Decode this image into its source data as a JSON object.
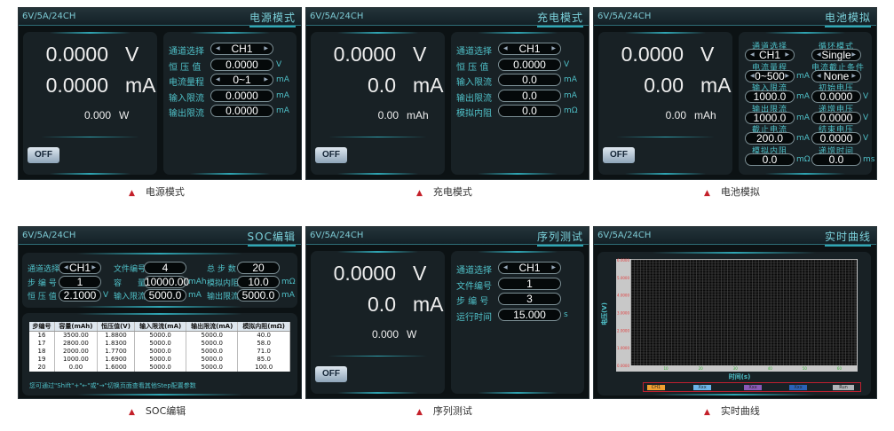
{
  "colors": {
    "accent": "#4fc0c8",
    "caption_marker": "#c4202a",
    "screen_bg": "#0c1214"
  },
  "panels": [
    {
      "type": "main",
      "model": "6V/5A/24CH",
      "mode": "电源模式",
      "caption": "电源模式",
      "readings": [
        {
          "value": "0.0000",
          "unit": "V"
        },
        {
          "value": "0.0000",
          "unit": "mA"
        },
        {
          "value": "0.000",
          "unit": "W"
        }
      ],
      "off": "OFF",
      "fields": [
        {
          "label": "通道选择",
          "value": "CH1",
          "arrows": true,
          "unit": ""
        },
        {
          "label": "恒 压 值",
          "value": "0.0000",
          "unit": "V"
        },
        {
          "label": "电流量程",
          "value": "0~1",
          "arrows": true,
          "unit": "mA"
        },
        {
          "label": "输入限流",
          "value": "0.0000",
          "unit": "mA"
        },
        {
          "label": "输出限流",
          "value": "0.0000",
          "unit": "mA"
        }
      ]
    },
    {
      "type": "main",
      "model": "6V/5A/24CH",
      "mode": "充电模式",
      "caption": "充电模式",
      "readings": [
        {
          "value": "0.0000",
          "unit": "V"
        },
        {
          "value": "0.0",
          "unit": "mA"
        },
        {
          "value": "0.00",
          "unit": "mAh"
        }
      ],
      "off": "OFF",
      "fields": [
        {
          "label": "通道选择",
          "value": "CH1",
          "arrows": true,
          "unit": ""
        },
        {
          "label": "恒 压 值",
          "value": "0.0000",
          "unit": "V"
        },
        {
          "label": "输入限流",
          "value": "0.0",
          "unit": "mA"
        },
        {
          "label": "输出限流",
          "value": "0.0",
          "unit": "mA"
        },
        {
          "label": "模拟内阻",
          "value": "0.0",
          "unit": "mΩ"
        }
      ]
    },
    {
      "type": "battery",
      "model": "6V/5A/24CH",
      "mode": "电池模拟",
      "caption": "电池模拟",
      "readings": [
        {
          "value": "0.0000",
          "unit": "V"
        },
        {
          "value": "0.00",
          "unit": "mA"
        },
        {
          "value": "0.00",
          "unit": "mAh"
        }
      ],
      "off": "OFF",
      "fields": [
        {
          "label": "通道选择",
          "value": "CH1",
          "arrows": true,
          "unit": ""
        },
        {
          "label": "循环模式",
          "value": "Single",
          "arrows": true,
          "unit": ""
        },
        {
          "label": "电流量程",
          "value": "0~500",
          "arrows": true,
          "unit": "mA"
        },
        {
          "label": "电流截止条件",
          "value": "None",
          "arrows": true,
          "unit": ""
        },
        {
          "label": "输入限流",
          "value": "1000.0",
          "unit": "mA"
        },
        {
          "label": "初始电压",
          "value": "0.0000",
          "unit": "V"
        },
        {
          "label": "输出限流",
          "value": "1000.0",
          "unit": "mA"
        },
        {
          "label": "递增电压",
          "value": "0.0000",
          "unit": "V"
        },
        {
          "label": "截止电流",
          "value": "200.0",
          "unit": "mA"
        },
        {
          "label": "结束电压",
          "value": "0.0000",
          "unit": "V"
        },
        {
          "label": "模拟内阻",
          "value": "0.0",
          "unit": "mΩ"
        },
        {
          "label": "递增时间",
          "value": "0.0",
          "unit": "ms"
        }
      ]
    },
    {
      "type": "soc",
      "model": "6V/5A/24CH",
      "mode": "SOC编辑",
      "caption": "SOC编辑",
      "fields": [
        {
          "label": "通道选择",
          "value": "CH1",
          "arrows": true,
          "unit": ""
        },
        {
          "label": "文件编号",
          "value": "4",
          "unit": ""
        },
        {
          "label": "总 步 数",
          "value": "20",
          "unit": ""
        },
        {
          "label": "步 编 号",
          "value": "1",
          "unit": ""
        },
        {
          "label": "容　　量",
          "value": "10000.00",
          "unit": "mAh"
        },
        {
          "label": "模拟内阻",
          "value": "10.0",
          "unit": "mΩ"
        },
        {
          "label": "恒 压 值",
          "value": "2.1000",
          "unit": "V"
        },
        {
          "label": "输入限流",
          "value": "5000.0",
          "unit": "mA"
        },
        {
          "label": "输出限流",
          "value": "5000.0",
          "unit": "mA"
        }
      ],
      "table": {
        "headers": [
          "步编号",
          "容量(mAh)",
          "恒压值(V)",
          "输入限流(mA)",
          "输出限流(mA)",
          "模拟内阻(mΩ)"
        ],
        "rows": [
          [
            "16",
            "3500.00",
            "1.8800",
            "5000.0",
            "5000.0",
            "40.0"
          ],
          [
            "17",
            "2800.00",
            "1.8300",
            "5000.0",
            "5000.0",
            "58.0"
          ],
          [
            "18",
            "2000.00",
            "1.7700",
            "5000.0",
            "5000.0",
            "71.0"
          ],
          [
            "19",
            "1000.00",
            "1.6900",
            "5000.0",
            "5000.0",
            "85.0"
          ],
          [
            "20",
            "0.00",
            "1.6000",
            "5000.0",
            "5000.0",
            "100.0"
          ]
        ]
      },
      "hint": "您可通过\"Shift\"+\"←\"或\"→\"切换页面查看其他Step配置参数"
    },
    {
      "type": "main",
      "model": "6V/5A/24CH",
      "mode": "序列测试",
      "caption": "序列测试",
      "readings": [
        {
          "value": "0.0000",
          "unit": "V"
        },
        {
          "value": "0.0",
          "unit": "mA"
        },
        {
          "value": "0.000",
          "unit": "W"
        }
      ],
      "off": "OFF",
      "fields": [
        {
          "label": "通道选择",
          "value": "CH1",
          "arrows": true,
          "unit": ""
        },
        {
          "label": "文件编号",
          "value": "1",
          "unit": ""
        },
        {
          "label": "步 编 号",
          "value": "3",
          "unit": ""
        },
        {
          "label": "运行时间",
          "value": "15.000",
          "unit": "s"
        }
      ]
    },
    {
      "type": "chart",
      "model": "6V/5A/24CH",
      "mode": "实时曲线",
      "caption": "实时曲线",
      "chart": {
        "ylabel": "电压(V)",
        "xlabel": "时间(s)",
        "yticks": [
          "0.0000",
          "1.0000",
          "2.0000",
          "3.0000",
          "4.0000",
          "5.0000",
          "6.0000"
        ],
        "xticks": [
          "10",
          "20",
          "30",
          "40",
          "50",
          "60"
        ],
        "ylim": [
          0,
          6
        ],
        "xlim": [
          0,
          65
        ],
        "grid": true
      },
      "legend": [
        {
          "label": "CH1",
          "color": "#f0a030"
        },
        {
          "label": "Xxx",
          "color": "#6cb4e8"
        },
        {
          "label": "Xxx",
          "color": "#8a5ab8"
        },
        {
          "label": "Xxx",
          "color": "#2a62b8"
        },
        {
          "label": "Run",
          "color": "#b0b4b8"
        }
      ]
    }
  ]
}
